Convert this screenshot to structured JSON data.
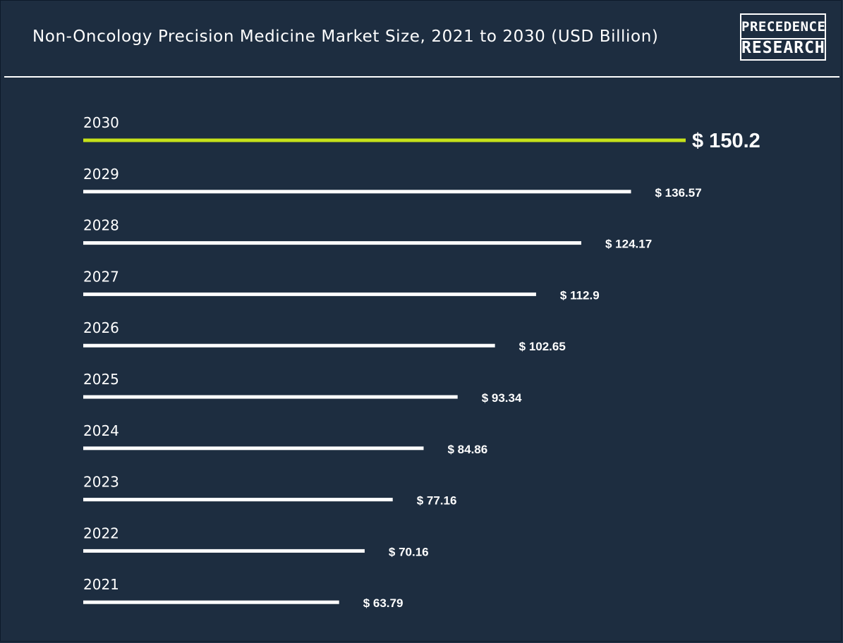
{
  "header": {
    "title": "Non-Oncology Precision Medicine Market Size, 2021 to 2030 (USD Billion)",
    "logo_line1": "PRECEDENCE",
    "logo_line2": "RESEARCH"
  },
  "colors": {
    "background": "#1d2d40",
    "bar": "#ffffff",
    "highlight_bar": "#c6e21a",
    "text": "#ffffff"
  },
  "chart_data": {
    "type": "bar",
    "orientation": "horizontal",
    "title": "Non-Oncology Precision Medicine Market Size, 2021 to 2030 (USD Billion)",
    "categories": [
      "2030",
      "2029",
      "2028",
      "2027",
      "2026",
      "2025",
      "2024",
      "2023",
      "2022",
      "2021"
    ],
    "values": [
      150.2,
      136.57,
      124.17,
      112.9,
      102.65,
      93.34,
      84.86,
      77.16,
      70.16,
      63.79
    ],
    "value_labels": [
      "$ 150.2",
      "$ 136.57",
      "$ 124.17",
      "$ 112.9",
      "$ 102.65",
      "$ 93.34",
      "$ 84.86",
      "$ 77.16",
      "$ 70.16",
      "$ 63.79"
    ],
    "highlight_category": "2030",
    "grid": false,
    "legend": "none"
  }
}
